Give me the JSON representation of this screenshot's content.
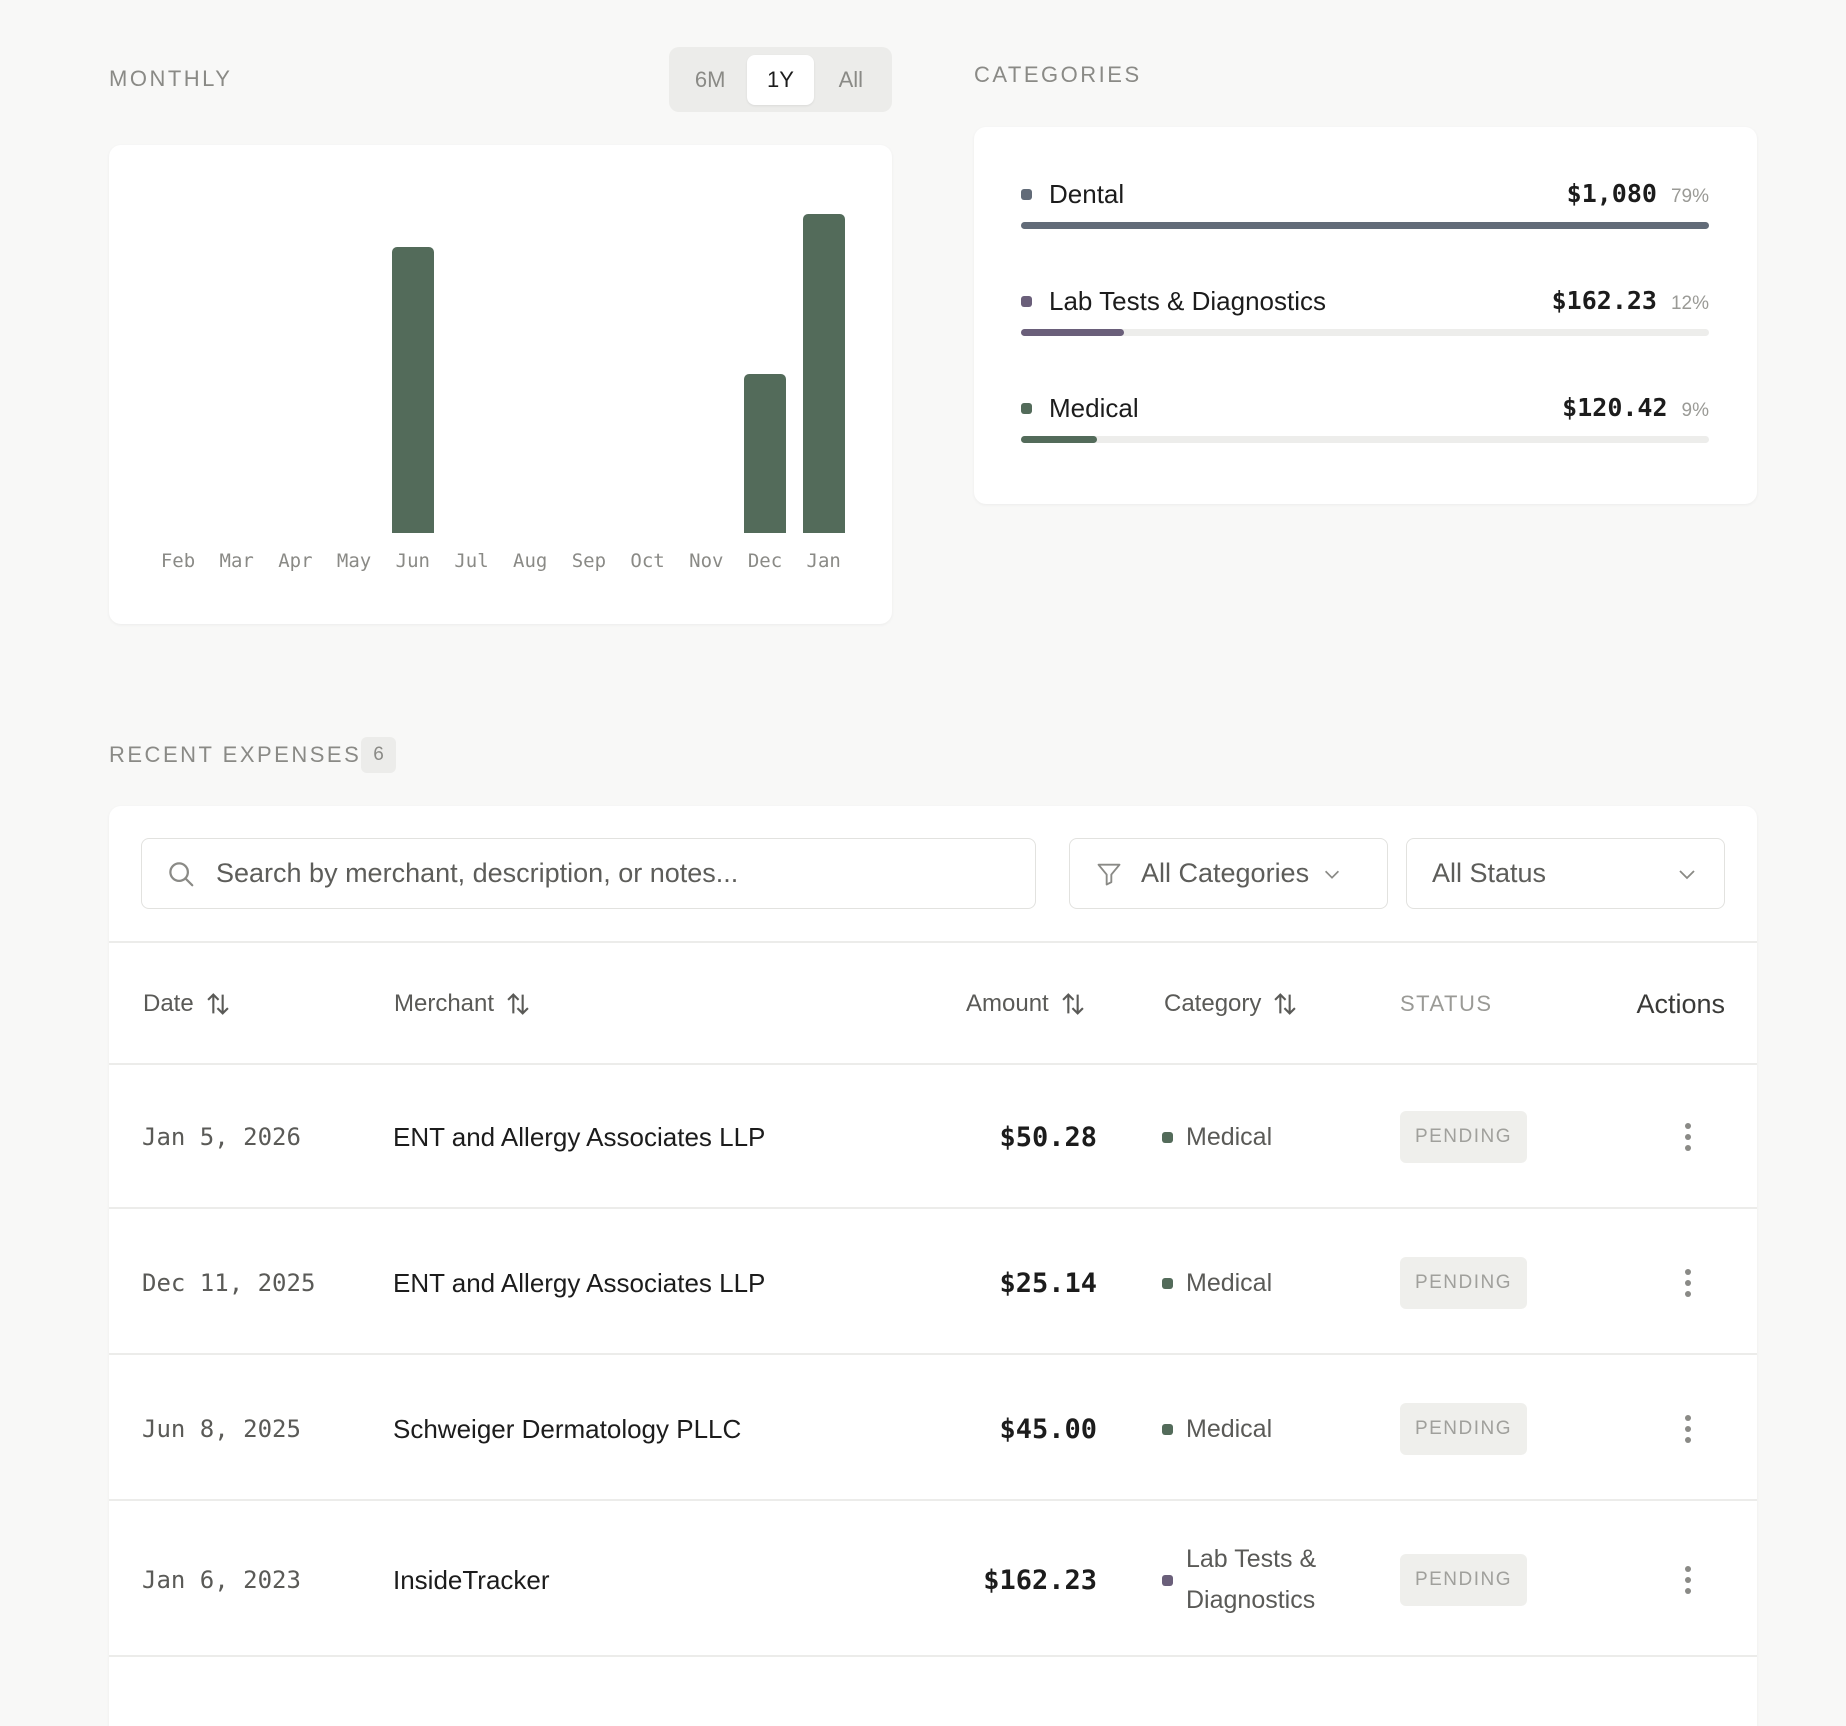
{
  "monthly": {
    "label": "MONTHLY",
    "ranges": [
      "6M",
      "1Y",
      "All"
    ],
    "active_range": "1Y"
  },
  "chart_data": {
    "type": "bar",
    "title": "",
    "categories": [
      "Feb",
      "Mar",
      "Apr",
      "May",
      "Jun",
      "Jul",
      "Aug",
      "Sep",
      "Oct",
      "Nov",
      "Dec",
      "Jan"
    ],
    "values": [
      0,
      0,
      0,
      0,
      45.0,
      0,
      0,
      0,
      0,
      0,
      25.14,
      50.28
    ],
    "xlabel": "",
    "ylabel": "",
    "ylim": [
      0,
      50.28
    ],
    "grid": false,
    "color": "#536b5a"
  },
  "categories": {
    "label": "CATEGORIES",
    "items": [
      {
        "name": "Dental",
        "amount": "$1,080",
        "percent": "79%",
        "share": 1.0,
        "color": "#626b78"
      },
      {
        "name": "Lab Tests & Diagnostics",
        "amount": "$162.23",
        "percent": "12%",
        "share": 0.15,
        "color": "#6a5f7a"
      },
      {
        "name": "Medical",
        "amount": "$120.42",
        "percent": "9%",
        "share": 0.11,
        "color": "#536b5a"
      }
    ]
  },
  "expenses": {
    "label": "RECENT EXPENSES",
    "count": "6",
    "search_placeholder": "Search by merchant, description, or notes...",
    "category_filter": "All Categories",
    "status_filter": "All Status",
    "columns": {
      "date": "Date",
      "merchant": "Merchant",
      "amount": "Amount",
      "category": "Category",
      "status": "STATUS",
      "actions": "Actions"
    },
    "rows": [
      {
        "date": "Jan 5, 2026",
        "merchant": "ENT and Allergy Associates LLP",
        "amount": "$50.28",
        "category": "Medical",
        "category_color": "#536b5a",
        "status": "PENDING"
      },
      {
        "date": "Dec 11, 2025",
        "merchant": "ENT and Allergy Associates LLP",
        "amount": "$25.14",
        "category": "Medical",
        "category_color": "#536b5a",
        "status": "PENDING"
      },
      {
        "date": "Jun 8, 2025",
        "merchant": "Schweiger Dermatology PLLC",
        "amount": "$45.00",
        "category": "Medical",
        "category_color": "#536b5a",
        "status": "PENDING"
      },
      {
        "date": "Jan 6, 2023",
        "merchant": "InsideTracker",
        "amount": "$162.23",
        "category": "Lab Tests & Diagnostics",
        "category_color": "#6a5f7a",
        "status": "PENDING"
      }
    ]
  }
}
